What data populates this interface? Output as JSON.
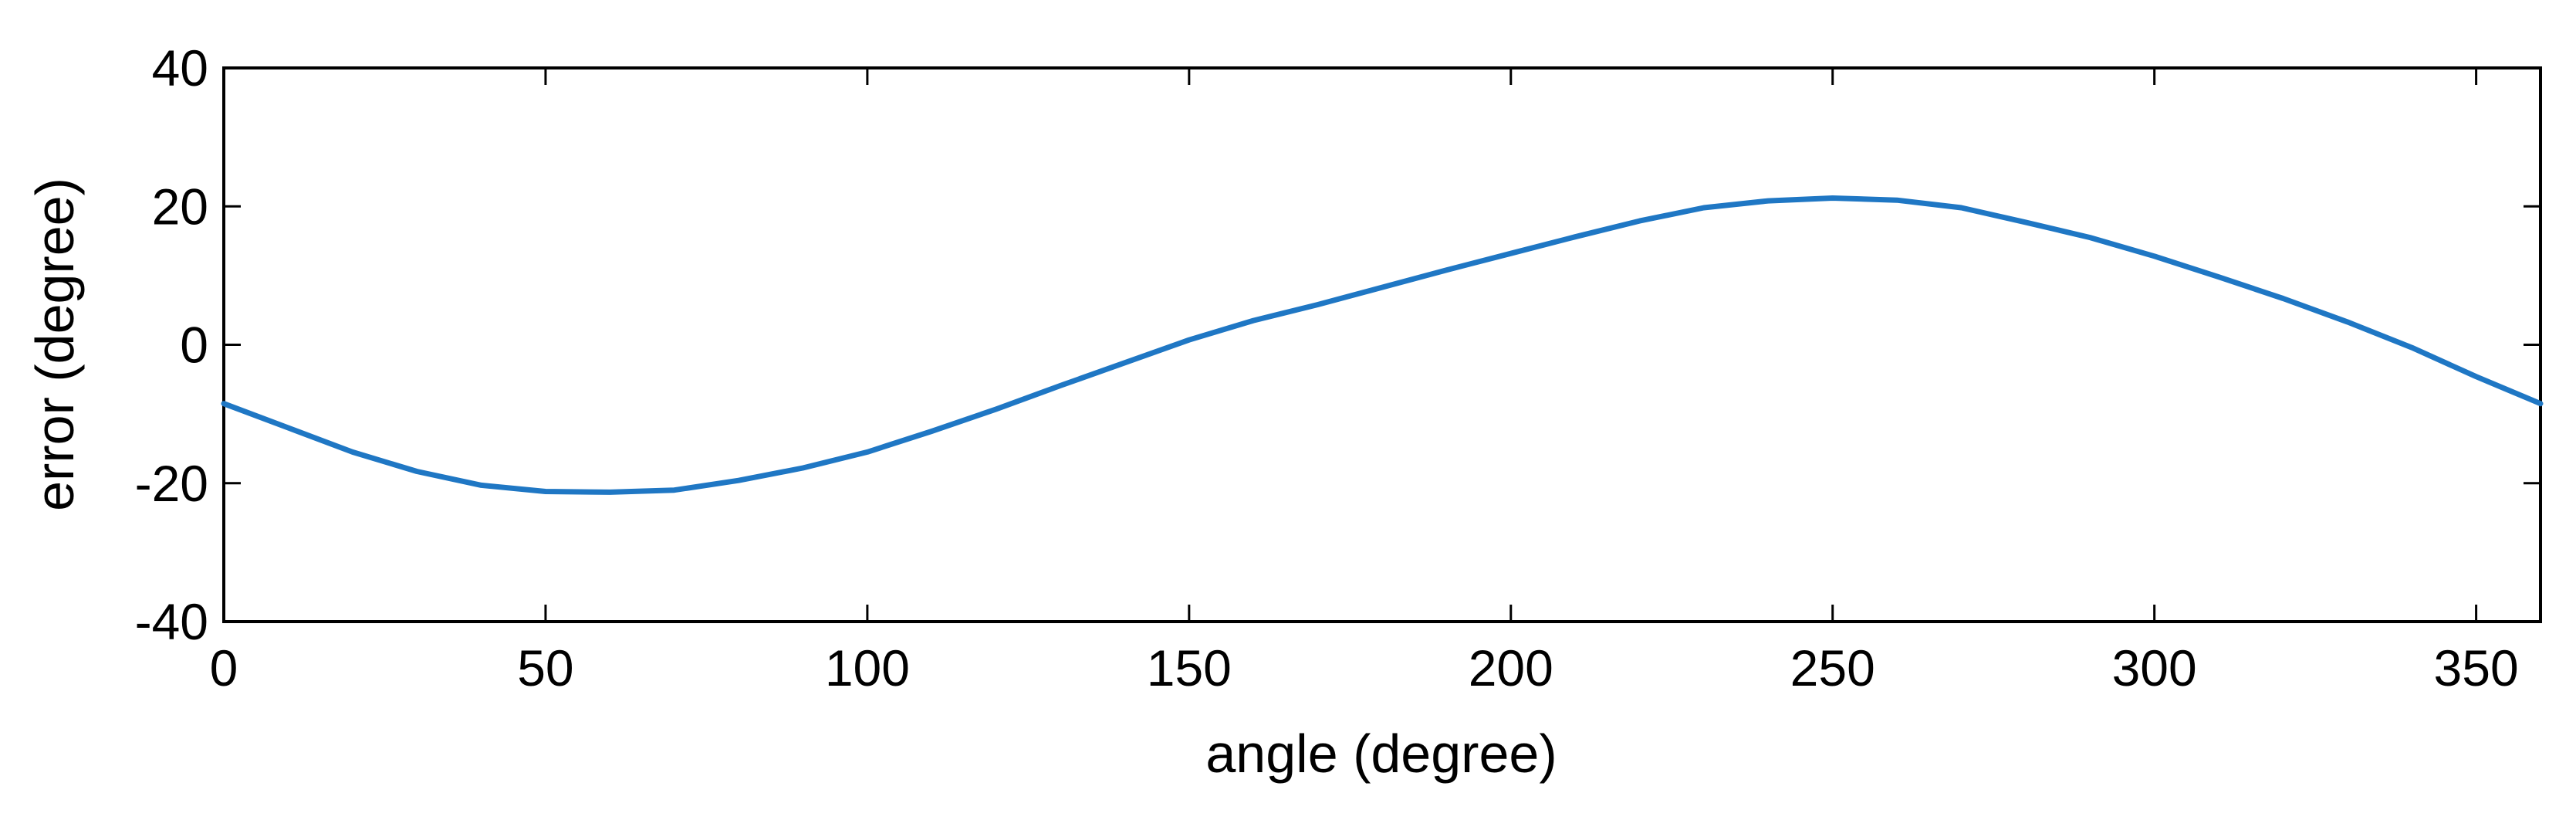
{
  "chart_data": {
    "type": "line",
    "title": "",
    "xlabel": "angle (degree)",
    "ylabel": "error (degree)",
    "xlim": [
      0,
      360
    ],
    "ylim": [
      -40,
      40
    ],
    "xticks": [
      0,
      50,
      100,
      150,
      200,
      250,
      300,
      350
    ],
    "yticks": [
      -40,
      -20,
      0,
      20,
      40
    ],
    "grid": false,
    "series": [
      {
        "color": "#1f77c4",
        "x": [
          0,
          10,
          20,
          30,
          40,
          50,
          60,
          70,
          80,
          90,
          100,
          110,
          120,
          130,
          140,
          150,
          160,
          170,
          180,
          190,
          200,
          210,
          220,
          230,
          240,
          250,
          260,
          270,
          280,
          290,
          300,
          310,
          320,
          330,
          340,
          350,
          360
        ],
        "y": [
          -8.5,
          -12,
          -15.5,
          -18.3,
          -20.3,
          -21.2,
          -21.3,
          -21,
          -19.6,
          -17.8,
          -15.5,
          -12.5,
          -9.3,
          -5.9,
          -2.6,
          0.7,
          3.5,
          5.8,
          8.3,
          10.8,
          13.2,
          15.6,
          17.9,
          19.8,
          20.8,
          21.2,
          20.9,
          19.8,
          17.7,
          15.5,
          12.8,
          9.8,
          6.7,
          3.3,
          -0.4,
          -4.6,
          -8.5
        ]
      }
    ]
  }
}
